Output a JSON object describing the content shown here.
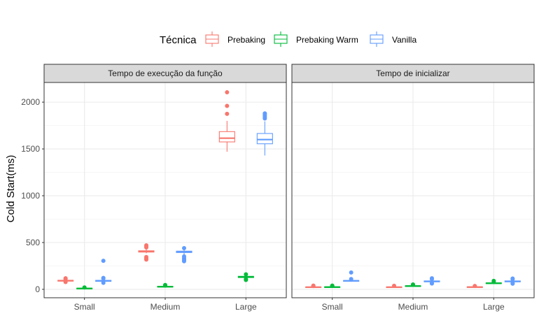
{
  "chart_data": {
    "type": "boxplot",
    "legend": {
      "title": "Técnica",
      "position": "top",
      "entries": [
        "Prebaking",
        "Prebaking Warm",
        "Vanilla"
      ]
    },
    "colors": {
      "Prebaking": "#F8766D",
      "Prebaking Warm": "#00BA38",
      "Vanilla": "#619CFF"
    },
    "ylabel": "Cold Start(ms)",
    "ylim": [
      -90,
      2210
    ],
    "yticks": [
      0,
      500,
      1000,
      1500,
      2000
    ],
    "categories": [
      "Small",
      "Medium",
      "Large"
    ],
    "panels": [
      {
        "title": "Tempo de execução da função",
        "groups": [
          {
            "category": "Small",
            "series": "Prebaking",
            "q1": 88,
            "median": 92,
            "q3": 97,
            "whisker_low": 82,
            "whisker_high": 104,
            "outliers": [
              110,
              118,
              78
            ]
          },
          {
            "category": "Small",
            "series": "Prebaking Warm",
            "q1": 6,
            "median": 9,
            "q3": 12,
            "whisker_low": 2,
            "whisker_high": 16,
            "outliers": [
              20
            ]
          },
          {
            "category": "Small",
            "series": "Vanilla",
            "q1": 85,
            "median": 91,
            "q3": 96,
            "whisker_low": 76,
            "whisker_high": 104,
            "outliers": [
              305,
              115,
              70,
              122
            ]
          },
          {
            "category": "Medium",
            "series": "Prebaking",
            "q1": 398,
            "median": 405,
            "q3": 412,
            "whisker_low": 385,
            "whisker_high": 428,
            "outliers": [
              460,
              448,
              330,
              318,
              345,
              470
            ]
          },
          {
            "category": "Medium",
            "series": "Prebaking Warm",
            "q1": 24,
            "median": 28,
            "q3": 32,
            "whisker_low": 18,
            "whisker_high": 38,
            "outliers": [
              42,
              46
            ]
          },
          {
            "category": "Medium",
            "series": "Vanilla",
            "q1": 393,
            "median": 400,
            "q3": 408,
            "whisker_low": 372,
            "whisker_high": 425,
            "outliers": [
              440,
              335,
              320,
              310,
              300,
              352
            ]
          },
          {
            "category": "Large",
            "series": "Prebaking",
            "q1": 1575,
            "median": 1615,
            "q3": 1685,
            "whisker_low": 1470,
            "whisker_high": 1800,
            "outliers": [
              1875,
              1960,
              2105
            ]
          },
          {
            "category": "Large",
            "series": "Prebaking Warm",
            "q1": 126,
            "median": 133,
            "q3": 139,
            "whisker_low": 116,
            "whisker_high": 150,
            "outliers": [
              160,
              100,
              108
            ]
          },
          {
            "category": "Large",
            "series": "Vanilla",
            "q1": 1555,
            "median": 1600,
            "q3": 1665,
            "whisker_low": 1430,
            "whisker_high": 1795,
            "outliers": [
              1825,
              1840,
              1855,
              1870,
              1880
            ]
          }
        ]
      },
      {
        "title": "Tempo de inicializar",
        "groups": [
          {
            "category": "Small",
            "series": "Prebaking",
            "q1": 20,
            "median": 23,
            "q3": 26,
            "whisker_low": 16,
            "whisker_high": 30,
            "outliers": [
              35,
              40
            ]
          },
          {
            "category": "Small",
            "series": "Prebaking Warm",
            "q1": 20,
            "median": 24,
            "q3": 27,
            "whisker_low": 16,
            "whisker_high": 31,
            "outliers": [
              36,
              40
            ]
          },
          {
            "category": "Small",
            "series": "Vanilla",
            "q1": 86,
            "median": 90,
            "q3": 95,
            "whisker_low": 80,
            "whisker_high": 102,
            "outliers": [
              180,
              110
            ]
          },
          {
            "category": "Medium",
            "series": "Prebaking",
            "q1": 20,
            "median": 23,
            "q3": 26,
            "whisker_low": 16,
            "whisker_high": 30,
            "outliers": [
              38
            ]
          },
          {
            "category": "Medium",
            "series": "Prebaking Warm",
            "q1": 31,
            "median": 35,
            "q3": 38,
            "whisker_low": 26,
            "whisker_high": 43,
            "outliers": [
              48,
              52
            ]
          },
          {
            "category": "Medium",
            "series": "Vanilla",
            "q1": 80,
            "median": 85,
            "q3": 90,
            "whisker_low": 72,
            "whisker_high": 98,
            "outliers": [
              110,
              118,
              66,
              62
            ]
          },
          {
            "category": "Large",
            "series": "Prebaking",
            "q1": 21,
            "median": 24,
            "q3": 27,
            "whisker_low": 17,
            "whisker_high": 31,
            "outliers": [
              36
            ]
          },
          {
            "category": "Large",
            "series": "Prebaking Warm",
            "q1": 62,
            "median": 65,
            "q3": 69,
            "whisker_low": 57,
            "whisker_high": 74,
            "outliers": [
              82,
              90
            ]
          },
          {
            "category": "Large",
            "series": "Vanilla",
            "q1": 80,
            "median": 85,
            "q3": 90,
            "whisker_low": 73,
            "whisker_high": 97,
            "outliers": [
              108,
              115,
              66,
              60
            ]
          }
        ]
      }
    ]
  }
}
